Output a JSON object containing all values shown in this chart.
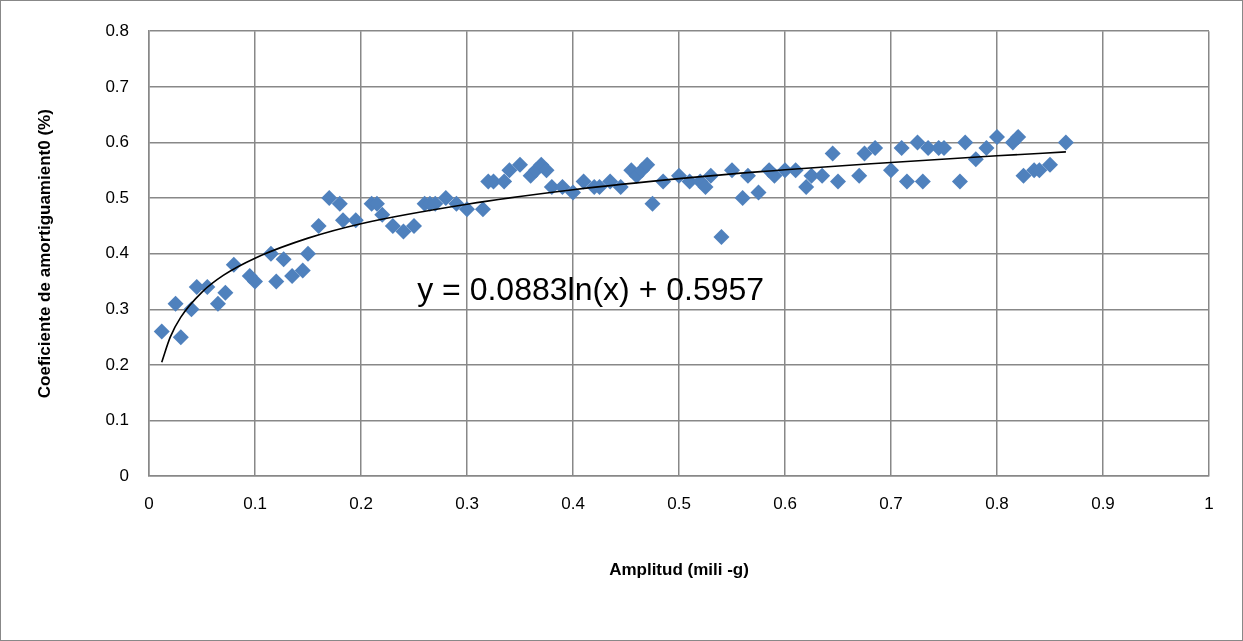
{
  "chart_data": {
    "type": "scatter",
    "xlabel": "Amplitud (mili -g)",
    "ylabel": "Coeficiente de amortiguamient0 (%)",
    "marker": "diamond",
    "grid": true,
    "legend": false,
    "xlim": [
      0,
      1
    ],
    "xticks": [
      0,
      0.1,
      0.2,
      0.3,
      0.4,
      0.5,
      0.6,
      0.7,
      0.8,
      0.9,
      1
    ],
    "ylim": [
      0,
      0.8
    ],
    "yticks": [
      0,
      0.1,
      0.2,
      0.3,
      0.4,
      0.5,
      0.6,
      0.7,
      0.8
    ],
    "annotations": [
      "y = 0.0883ln(x) + 0.5957"
    ],
    "series": [
      {
        "type": "scatter",
        "color": "#4f81bd",
        "x": [
          0.012,
          0.025,
          0.03,
          0.04,
          0.045,
          0.055,
          0.065,
          0.072,
          0.08,
          0.095,
          0.1,
          0.115,
          0.12,
          0.127,
          0.135,
          0.145,
          0.15,
          0.16,
          0.17,
          0.18,
          0.183,
          0.195,
          0.21,
          0.215,
          0.22,
          0.23,
          0.24,
          0.25,
          0.26,
          0.265,
          0.27,
          0.28,
          0.29,
          0.3,
          0.315,
          0.32,
          0.325,
          0.335,
          0.34,
          0.35,
          0.36,
          0.365,
          0.37,
          0.375,
          0.38,
          0.39,
          0.4,
          0.41,
          0.42,
          0.425,
          0.435,
          0.445,
          0.455,
          0.46,
          0.465,
          0.47,
          0.475,
          0.485,
          0.5,
          0.51,
          0.52,
          0.525,
          0.53,
          0.54,
          0.55,
          0.56,
          0.565,
          0.575,
          0.585,
          0.59,
          0.6,
          0.61,
          0.62,
          0.625,
          0.635,
          0.645,
          0.65,
          0.67,
          0.675,
          0.685,
          0.7,
          0.71,
          0.715,
          0.725,
          0.73,
          0.735,
          0.745,
          0.75,
          0.765,
          0.77,
          0.78,
          0.79,
          0.8,
          0.815,
          0.82,
          0.825,
          0.835,
          0.84,
          0.85,
          0.865
        ],
        "values": [
          0.26,
          0.31,
          0.25,
          0.3,
          0.34,
          0.34,
          0.31,
          0.33,
          0.38,
          0.36,
          0.35,
          0.4,
          0.35,
          0.39,
          0.36,
          0.37,
          0.4,
          0.45,
          0.5,
          0.49,
          0.46,
          0.46,
          0.49,
          0.49,
          0.47,
          0.45,
          0.44,
          0.45,
          0.49,
          0.49,
          0.49,
          0.5,
          0.49,
          0.48,
          0.48,
          0.53,
          0.53,
          0.53,
          0.55,
          0.56,
          0.54,
          0.55,
          0.56,
          0.55,
          0.52,
          0.52,
          0.51,
          0.53,
          0.52,
          0.52,
          0.53,
          0.52,
          0.55,
          0.54,
          0.55,
          0.56,
          0.49,
          0.53,
          0.54,
          0.53,
          0.53,
          0.52,
          0.54,
          0.43,
          0.55,
          0.5,
          0.54,
          0.51,
          0.55,
          0.54,
          0.55,
          0.55,
          0.52,
          0.54,
          0.54,
          0.58,
          0.53,
          0.54,
          0.58,
          0.59,
          0.55,
          0.59,
          0.53,
          0.6,
          0.53,
          0.59,
          0.59,
          0.59,
          0.53,
          0.6,
          0.57,
          0.59,
          0.61,
          0.6,
          0.61,
          0.54,
          0.55,
          0.55,
          0.56,
          0.6
        ]
      },
      {
        "type": "line",
        "color": "#000000",
        "marker": "none",
        "x": [
          0.012,
          0.02,
          0.03,
          0.05,
          0.07,
          0.1,
          0.15,
          0.2,
          0.3,
          0.4,
          0.5,
          0.6,
          0.7,
          0.8,
          0.865
        ],
        "values": [
          0.205,
          0.25,
          0.286,
          0.331,
          0.361,
          0.392,
          0.428,
          0.454,
          0.489,
          0.515,
          0.535,
          0.551,
          0.564,
          0.576,
          0.583
        ]
      }
    ]
  }
}
